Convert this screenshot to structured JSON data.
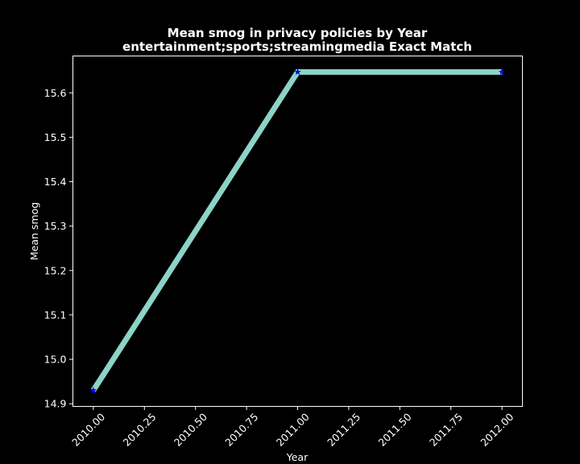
{
  "chart_data": {
    "type": "line",
    "title": "Mean smog in privacy policies by Year",
    "subtitle": "entertainment;sports;streamingmedia Exact Match",
    "xlabel": "Year",
    "ylabel": "Mean smog",
    "x": [
      2010,
      2011,
      2012
    ],
    "series": [
      {
        "values": [
          14.93,
          15.647,
          15.647
        ]
      }
    ],
    "xlim": [
      2009.9,
      2012.1
    ],
    "ylim": [
      14.894,
      15.683
    ],
    "xticks": [
      2010.0,
      2010.25,
      2010.5,
      2010.75,
      2011.0,
      2011.25,
      2011.5,
      2011.75,
      2012.0
    ],
    "xtick_labels": [
      "2010.00",
      "2010.25",
      "2010.50",
      "2010.75",
      "2011.00",
      "2011.25",
      "2011.50",
      "2011.75",
      "2012.00"
    ],
    "yticks": [
      14.9,
      15.0,
      15.1,
      15.2,
      15.3,
      15.4,
      15.5,
      15.6
    ],
    "ytick_labels": [
      "14.9",
      "15.0",
      "15.1",
      "15.2",
      "15.3",
      "15.4",
      "15.5",
      "15.6"
    ],
    "grid": false,
    "line_color": "#8dd3c7",
    "marker_color": "#0000ff",
    "background": "#000000",
    "text_color": "#ffffff"
  }
}
